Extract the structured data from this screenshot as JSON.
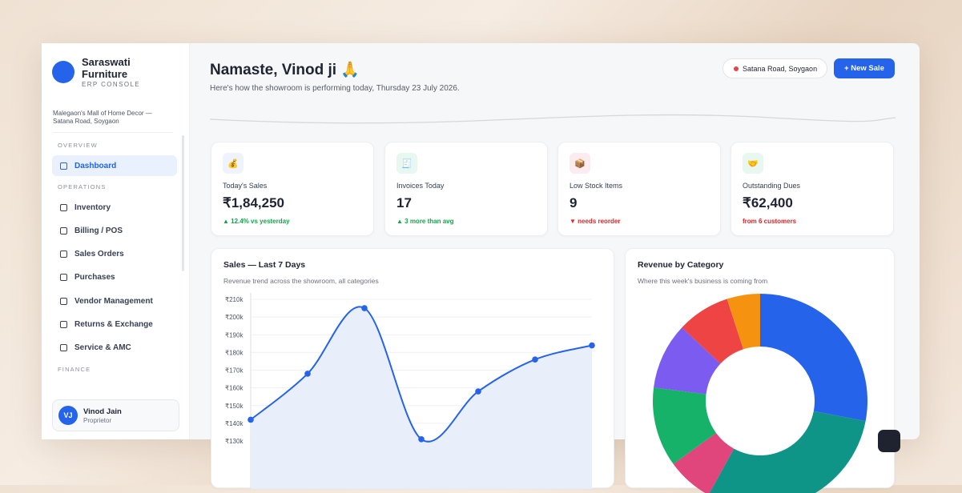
{
  "sidebar": {
    "brand": {
      "name": "Saraswati Furniture",
      "tag": "ERP CONSOLE"
    },
    "location": "Malegaon's Mall of Home Decor — Satana Road, Soygaon",
    "nav": [
      {
        "heading": "OVERVIEW",
        "items": [
          "Dashboard"
        ]
      },
      {
        "heading": "OPERATIONS",
        "items": [
          "Inventory",
          "Billing / POS",
          "Sales Orders",
          "Purchases",
          "Vendor Management",
          "Returns & Exchange",
          "Service & AMC"
        ]
      },
      {
        "heading": "FINANCE",
        "items": []
      }
    ],
    "user": {
      "initials": "VJ",
      "name": "Vinod Jain",
      "role": "Proprietor"
    }
  },
  "header": {
    "greeting": "Namaste, Vinod ji 🙏",
    "subtitle": "Here's how the showroom is performing today, Thursday 23 July 2026.",
    "location": "Satana Road, Soygaon",
    "action": "+ New Sale"
  },
  "stats": [
    {
      "icon": "💰",
      "icon_bg": "#eef3fd",
      "label": "Today's Sales",
      "value": "₹1,84,250",
      "note": "▲ 12.4% vs yesterday",
      "note_color": "#16a34a"
    },
    {
      "icon": "🧾",
      "icon_bg": "#e9f7f1",
      "label": "Invoices Today",
      "value": "17",
      "note": "▲ 3 more than avg",
      "note_color": "#16a34a"
    },
    {
      "icon": "📦",
      "icon_bg": "#fdecef",
      "label": "Low Stock Items",
      "value": "9",
      "note": "▼ needs reorder",
      "note_color": "#dc2626"
    },
    {
      "icon": "🤝",
      "icon_bg": "#e9f7f1",
      "label": "Outstanding Dues",
      "value": "₹62,400",
      "note": "from 6 customers",
      "note_color": "#dc2626"
    }
  ],
  "chart_data": [
    {
      "type": "line",
      "title": "Sales — Last 7 Days",
      "subtitle": "Revenue trend across the showroom, all categories",
      "values": [
        142000,
        168000,
        205000,
        131000,
        158000,
        176000,
        184000
      ],
      "color": "#2563eb",
      "area_color": "#e6edfb",
      "ylim": [
        130000,
        210000
      ],
      "yticks": [
        {
          "value": 130000,
          "label": "₹130k"
        },
        {
          "value": 140000,
          "label": "₹140k"
        },
        {
          "value": 150000,
          "label": "₹150k"
        },
        {
          "value": 160000,
          "label": "₹160k"
        },
        {
          "value": 170000,
          "label": "₹170k"
        },
        {
          "value": 180000,
          "label": "₹180k"
        },
        {
          "value": 190000,
          "label": "₹190k"
        },
        {
          "value": 200000,
          "label": "₹200k"
        },
        {
          "value": 210000,
          "label": "₹210k"
        }
      ],
      "grid": true
    },
    {
      "type": "pie",
      "donut": true,
      "title": "Revenue by Category",
      "subtitle": "Where this week's business is coming from",
      "values": [
        28,
        30,
        7,
        12,
        10,
        8,
        5
      ],
      "colors": [
        "#2563eb",
        "#0f9488",
        "#e0457b",
        "#17b26a",
        "#7c5cf0",
        "#ef4444",
        "#f59210"
      ]
    }
  ]
}
